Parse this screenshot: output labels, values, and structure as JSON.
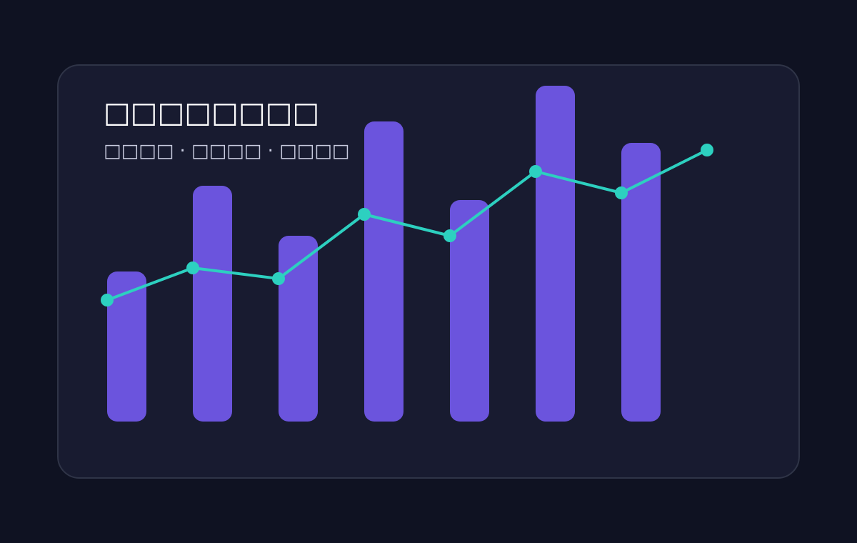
{
  "chart_data": {
    "type": "bar-line",
    "title": "□□□□□□□□",
    "subtitle": "□□□□ · □□□□ · □□□□",
    "categories": [
      null,
      null,
      null,
      null,
      null,
      null,
      null,
      null
    ],
    "ylim": [
      0,
      470
    ],
    "series": [
      {
        "type": "bar",
        "color": "#6b54dd",
        "values": [
          210,
          330,
          260,
          420,
          310,
          470,
          390,
          null
        ]
      },
      {
        "type": "line",
        "color": "#2dd0c0",
        "values": [
          170,
          215,
          200,
          290,
          260,
          350,
          320,
          380
        ]
      }
    ]
  }
}
